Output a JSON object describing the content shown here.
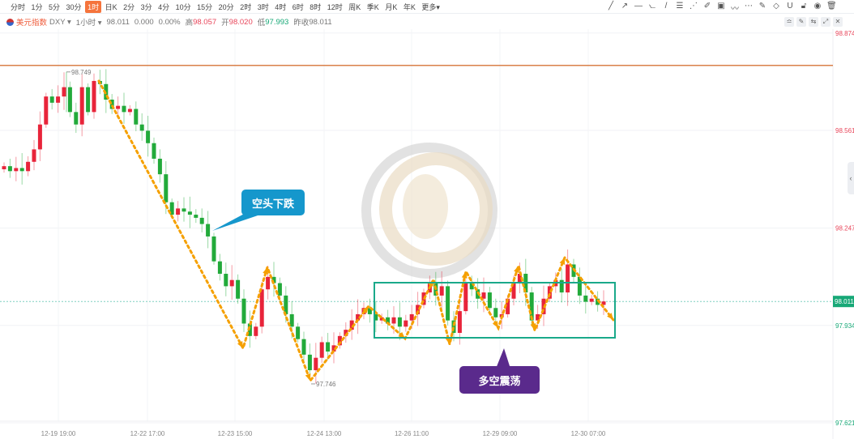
{
  "toolbar": {
    "periods": [
      "分时",
      "1分",
      "5分",
      "30分",
      "1时",
      "日K",
      "2分",
      "3分",
      "4分",
      "10分",
      "15分",
      "20分",
      "2时",
      "3时",
      "4时",
      "6时",
      "8时",
      "12时",
      "周K",
      "季K",
      "月K",
      "年K",
      "更多▾"
    ],
    "active": "1时",
    "tools": [
      "trend-line-icon",
      "ray-icon",
      "horizontal-line-icon",
      "polyline-icon",
      "segment-icon",
      "fib-icon",
      "fan-icon",
      "brush-icon",
      "image-icon",
      "chart-pattern-icon",
      "more-icon",
      "note-icon",
      "eraser-icon",
      "magnet-icon",
      "lock-icon",
      "eye-icon",
      "trash-icon"
    ]
  },
  "info": {
    "symbol": "美元指数",
    "code": "DXY ▾",
    "interval": "1小时 ▾",
    "price": "98.011",
    "change": "0.000",
    "pct": "0.00%",
    "high_label": "高",
    "high": "98.057",
    "open_label": "开",
    "open": "98.020",
    "low_label": "低",
    "low": "97.993",
    "prev_label": "昨收",
    "prev": "98.011"
  },
  "annotations": {
    "bear": "空头下跌",
    "range": "多空震荡"
  },
  "colors": {
    "up": "#e8243a",
    "down": "#22aa3a",
    "trend": "#f5a000",
    "box": "#1aa98a",
    "hline": "#d9804a",
    "bear_callout": "#1597cc",
    "range_callout": "#5a2a8c"
  },
  "chart_data": {
    "type": "candlestick",
    "ylim": [
      97.621,
      98.874
    ],
    "yticks": [
      "98.874",
      "98.561",
      "98.247",
      "97.934",
      "97.621"
    ],
    "current_price": "98.011",
    "xticks": [
      "12-19 19:00",
      "12-22 17:00",
      "12-23 15:00",
      "12-24 13:00",
      "12-26 11:00",
      "12-29 09:00",
      "12-30 07:00"
    ],
    "high_label": "98.749",
    "low_label": "97.746",
    "resistance": 98.77,
    "range_box": [
      97.92,
      98.08
    ],
    "closes": [
      98.446,
      98.43,
      98.44,
      98.43,
      98.46,
      98.5,
      98.58,
      98.67,
      98.65,
      98.67,
      98.7,
      98.62,
      98.58,
      98.7,
      98.62,
      98.72,
      98.71,
      98.66,
      98.63,
      98.64,
      98.62,
      98.63,
      98.58,
      98.56,
      98.52,
      98.47,
      98.42,
      98.33,
      98.29,
      98.31,
      98.3,
      98.29,
      98.28,
      98.26,
      98.22,
      98.14,
      98.1,
      98.06,
      98.08,
      98.02,
      97.94,
      97.9,
      97.93,
      98.05,
      98.09,
      98.07,
      98.03,
      97.97,
      97.93,
      97.89,
      97.84,
      97.79,
      97.83,
      97.88,
      97.85,
      97.87,
      97.9,
      97.92,
      97.95,
      97.97,
      97.99,
      97.97,
      97.95,
      97.96,
      97.94,
      97.96,
      97.93,
      97.95,
      97.97,
      98.0,
      98.04,
      98.07,
      98.03,
      98.06,
      97.95,
      97.91,
      97.98,
      98.07,
      98.05,
      98.02,
      98.04,
      97.99,
      97.96,
      97.97,
      98.02,
      98.07,
      98.1,
      98.04,
      97.95,
      97.97,
      98.02,
      98.06,
      98.08,
      98.04,
      98.13,
      98.09,
      98.03,
      98.01,
      98.02,
      98.0,
      98.011
    ]
  }
}
